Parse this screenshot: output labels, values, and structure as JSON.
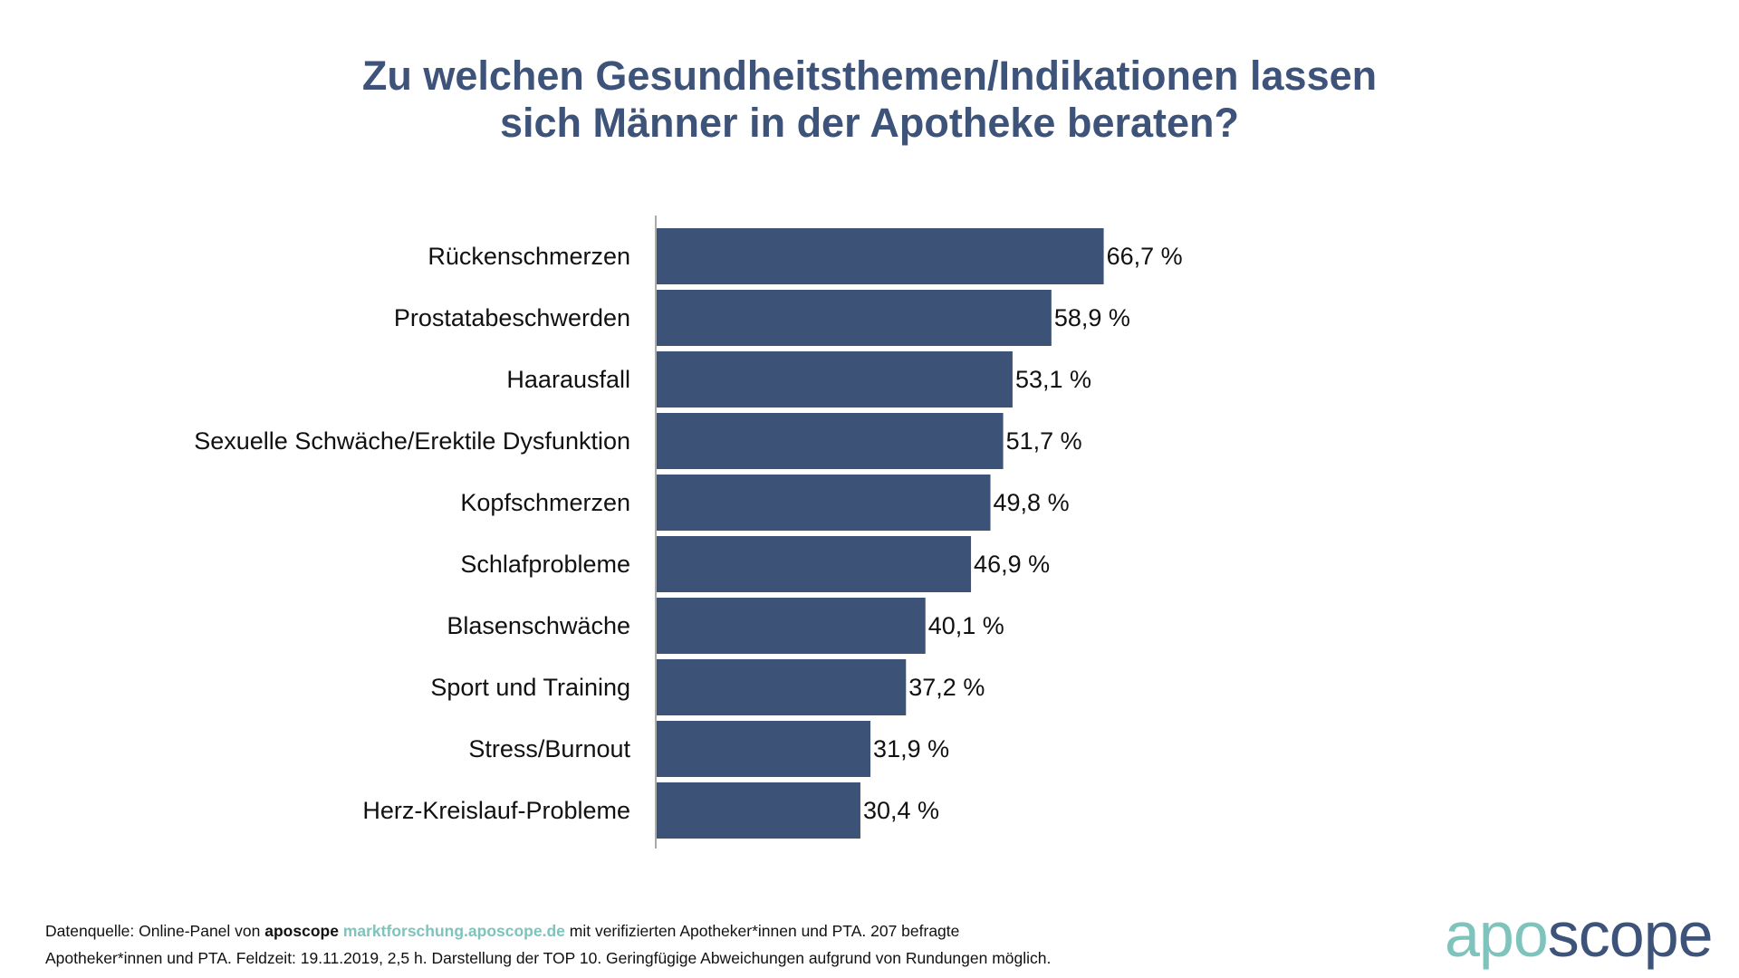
{
  "title_lines": [
    "Zu welchen Gesundheitsthemen/Indikationen lassen",
    "sich Männer in der Apotheke beraten?"
  ],
  "colors": {
    "title": "#3d5379",
    "bar": "#3d5277",
    "axis": "#555555",
    "text": "#111111",
    "brand_teal": "#7ec3bc",
    "brand_navy": "#3d5379"
  },
  "chart_data": {
    "type": "bar",
    "orientation": "horizontal",
    "title": "Zu welchen Gesundheitsthemen/Indikationen lassen sich Männer in der Apotheke beraten?",
    "categories": [
      "Rückenschmerzen",
      "Prostatabeschwerden",
      "Haarausfall",
      "Sexuelle Schwäche/Erektile Dysfunktion",
      "Kopfschmerzen",
      "Schlafprobleme",
      "Blasenschwäche",
      "Sport und Training",
      "Stress/Burnout",
      "Herz-Kreislauf-Probleme"
    ],
    "values": [
      66.7,
      58.9,
      53.1,
      51.7,
      49.8,
      46.9,
      40.1,
      37.2,
      31.9,
      30.4
    ],
    "value_labels": [
      "66,7 %",
      "58,9 %",
      "53,1 %",
      "51,7 %",
      "49,8 %",
      "46,9 %",
      "40,1 %",
      "37,2 %",
      "31,9 %",
      "30,4 %"
    ],
    "unit": "%",
    "xlim": [
      0,
      100
    ],
    "grid": false,
    "legend": "none"
  },
  "footnote": {
    "prefix": "Datenquelle: Online-Panel von ",
    "brand": "aposcope",
    "link": "marktforschung.aposcope.de",
    "line1_rest": " mit verifizierten Apotheker*innen und PTA. 207 befragte",
    "line2": "Apotheker*innen und PTA. Feldzeit: 19.11.2019, 2,5 h. Darstellung der TOP 10. Geringfügige Abweichungen aufgrund von Rundungen möglich."
  },
  "logo": {
    "part1": "apo",
    "part2": "scope"
  }
}
